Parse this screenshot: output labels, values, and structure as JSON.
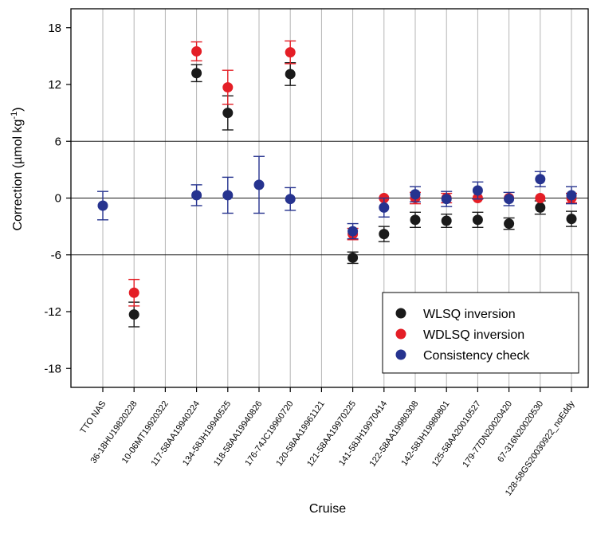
{
  "chart_data": {
    "type": "scatter",
    "xlabel": "Cruise",
    "ylabel_main": "Correction (µmol kg",
    "ylabel_sup": "-1",
    "ylabel_close": ")",
    "categories": [
      "TTO NAS",
      "36-18HU19820228",
      "10-06MT19920322",
      "117-58AA19940224",
      "134-58JH19940525",
      "118-58AA19940826",
      "176-74JC19960720",
      "120-58AA19961121",
      "121-58AA19970225",
      "141-58JH19970414",
      "122-58AA19980308",
      "142-58JH19980801",
      "125-58AA20010527",
      "179-77DN20020420",
      "67-316N20020530",
      "128-58GS20030922_noEddy"
    ],
    "ylim": [
      -20,
      20
    ],
    "yticks": [
      -18,
      -12,
      -6,
      0,
      6,
      12,
      18
    ],
    "grid": {
      "vertical": true,
      "horizontal_at": [
        -6,
        0,
        6
      ]
    },
    "legend_position": "bottom-right",
    "series": [
      {
        "name": "WLSQ inversion",
        "color": "#1a1a1a",
        "points": [
          {
            "category": "36-18HU19820228",
            "y": -12.3,
            "err": 1.3
          },
          {
            "category": "117-58AA19940224",
            "y": 13.2,
            "err": 0.9
          },
          {
            "category": "134-58JH19940525",
            "y": 9.0,
            "err": 1.8
          },
          {
            "category": "176-74JC19960720",
            "y": 13.1,
            "err": 1.2
          },
          {
            "category": "121-58AA19970225",
            "y": -6.3,
            "err": 0.6
          },
          {
            "category": "141-58JH19970414",
            "y": -3.8,
            "err": 0.8
          },
          {
            "category": "122-58AA19980308",
            "y": -2.3,
            "err": 0.8
          },
          {
            "category": "142-58JH19980801",
            "y": -2.4,
            "err": 0.7
          },
          {
            "category": "125-58AA20010527",
            "y": -2.3,
            "err": 0.8
          },
          {
            "category": "179-77DN20020420",
            "y": -2.7,
            "err": 0.6
          },
          {
            "category": "67-316N20020530",
            "y": -1.0,
            "err": 0.7
          },
          {
            "category": "128-58GS20030922_noEddy",
            "y": -2.2,
            "err": 0.8
          }
        ]
      },
      {
        "name": "WDLSQ inversion",
        "color": "#e41e26",
        "points": [
          {
            "category": "36-18HU19820228",
            "y": -10.0,
            "err": 1.4
          },
          {
            "category": "117-58AA19940224",
            "y": 15.5,
            "err": 1.0
          },
          {
            "category": "134-58JH19940525",
            "y": 11.7,
            "err": 1.8
          },
          {
            "category": "176-74JC19960720",
            "y": 15.4,
            "err": 1.2
          },
          {
            "category": "121-58AA19970225",
            "y": -3.8,
            "err": 0.6
          },
          {
            "category": "141-58JH19970414",
            "y": 0.0,
            "err": 0.0
          },
          {
            "category": "122-58AA19980308",
            "y": 0.0,
            "err": 0.6
          },
          {
            "category": "142-58JH19980801",
            "y": 0.0,
            "err": 0.5
          },
          {
            "category": "125-58AA20010527",
            "y": 0.0,
            "err": 0.0
          },
          {
            "category": "179-77DN20020420",
            "y": 0.0,
            "err": 0.0
          },
          {
            "category": "67-316N20020530",
            "y": 0.0,
            "err": 0.0
          },
          {
            "category": "128-58GS20030922_noEddy",
            "y": 0.0,
            "err": 0.5
          }
        ]
      },
      {
        "name": "Consistency check",
        "color": "#26338f",
        "points": [
          {
            "category": "TTO NAS",
            "y": -0.8,
            "err": 1.5
          },
          {
            "category": "117-58AA19940224",
            "y": 0.3,
            "err": 1.1
          },
          {
            "category": "134-58JH19940525",
            "y": 0.3,
            "err": 1.9
          },
          {
            "category": "118-58AA19940826",
            "y": 1.4,
            "err": 3.0
          },
          {
            "category": "176-74JC19960720",
            "y": -0.1,
            "err": 1.2
          },
          {
            "category": "121-58AA19970225",
            "y": -3.5,
            "err": 0.8
          },
          {
            "category": "141-58JH19970414",
            "y": -1.0,
            "err": 1.0
          },
          {
            "category": "122-58AA19980308",
            "y": 0.4,
            "err": 0.8
          },
          {
            "category": "142-58JH19980801",
            "y": -0.1,
            "err": 0.8
          },
          {
            "category": "125-58AA20010527",
            "y": 0.8,
            "err": 0.9
          },
          {
            "category": "179-77DN20020420",
            "y": -0.1,
            "err": 0.7
          },
          {
            "category": "67-316N20020530",
            "y": 2.0,
            "err": 0.8
          },
          {
            "category": "128-58GS20030922_noEddy",
            "y": 0.3,
            "err": 0.9
          }
        ]
      }
    ]
  }
}
